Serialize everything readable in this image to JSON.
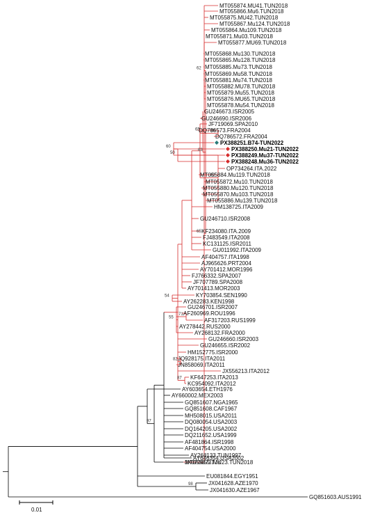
{
  "colors": {
    "black": "#000000",
    "red": "#d62b2b",
    "blue": "#2b7a78",
    "diamond": "#e02020"
  },
  "scale_bar": {
    "label": "0.01"
  },
  "root": {
    "branch_color": "black",
    "children": [
      {
        "label": "GQ851603.AUS1991"
      },
      {
        "children": [
          {
            "children": [
              {
                "label": "JX041628.AZE1970"
              },
              {
                "label": "JX041630.AZE1967"
              }
            ],
            "support": "98"
          },
          {
            "label": "EU081844.EGY1951"
          },
          {
            "children": [
              {
                "children": [
                  {
                    "children": [
                      {
                        "label": "JX070655.TJK"
                      },
                      {
                        "children": [
                          {
                            "label": "AY660002.MEX2003"
                          },
                          {
                            "label": "GQ851607.NGA1965"
                          },
                          {
                            "label": "GQ851608.CAF1967"
                          },
                          {
                            "label": "MH508015.USA2011"
                          },
                          {
                            "label": "DQ080054.USA2003"
                          },
                          {
                            "label": "DQ164205.USA2002"
                          },
                          {
                            "label": "DQ211652.USA1999"
                          },
                          {
                            "label": "AF481864.ISR1998"
                          },
                          {
                            "label": "AF404754.USA2000"
                          },
                          {
                            "label": "AY268133.TUN1997"
                          },
                          {
                            "label": "AY646354.USA2002"
                          },
                          {
                            "branch_color": "red",
                            "children": [
                              {
                                "children": [
                                  {
                                    "children": [
                                      {
                                        "children": [
                                          {
                                            "children": [
                                              {
                                                "children": [
                                                  {
                                                    "children": [
                                                      {
                                                        "children": [
                                                          {
                                                            "label": "MT055873.MU23.TUN2018"
                                                          },
                                                          {
                                                            "label": "MT055874.MU41.TUN2018"
                                                          },
                                                          {
                                                            "label": "MT055866.Mu6.TUN2018"
                                                          },
                                                          {
                                                            "label": "MT055875.MU42.TUN2018"
                                                          },
                                                          {
                                                            "label": "MT055867.Mu124.TUN2018"
                                                          },
                                                          {
                                                            "label": "MT055864.Mu109.TUN2018"
                                                          },
                                                          {
                                                            "label": "MT055871.Mu03.TUN2018"
                                                          }
                                                        ],
                                                        "support": "65"
                                                      },
                                                      {
                                                        "children": [
                                                          {
                                                            "label": "MT055877.MU69.TUN2018"
                                                          },
                                                          {
                                                            "label": "MT055868.Mu130.TUN2018"
                                                          },
                                                          {
                                                            "label": "MT055865.Mu128.TUN2018"
                                                          },
                                                          {
                                                            "label": "MT055885.Mu73.TUN2018"
                                                          },
                                                          {
                                                            "label": "MT055869.Mu58.TUN2018"
                                                          },
                                                          {
                                                            "label": "MT055881.Mu74.TUN2018"
                                                          },
                                                          {
                                                            "label": "MT055882.MU78.TUN2018"
                                                          },
                                                          {
                                                            "label": "MT055879.Mu55.TUN2018"
                                                          },
                                                          {
                                                            "label": "MT055876.MU65.TUN2018"
                                                          }
                                                        ],
                                                        "support": "62"
                                                      },
                                                      {
                                                        "label": "MT055878.Mu54.TUN2018"
                                                      }
                                                    ],
                                                    "support": "63"
                                                  },
                                                  {
                                                    "label": "GU246673.ISR2005"
                                                  },
                                                  {
                                                    "label": "GU246690.ISR2006"
                                                  }
                                                ],
                                                "support": "65"
                                              },
                                              {
                                                "label": "JF719069.SPA2010"
                                              },
                                              {
                                                "children": [
                                                  {
                                                    "label": "DQ786573.FRA2004"
                                                  },
                                                  {
                                                    "label": "DQ786572.FRA2004"
                                                  }
                                                ],
                                                "support": "99"
                                              },
                                              {
                                                "children": [
                                                  {
                                                    "children": [
                                                      {
                                                        "children": [
                                                          {
                                                            "label": "PX388251.B74-TUN2022",
                                                            "bold": true,
                                                            "marker": "blue"
                                                          },
                                                          {
                                                            "label": "PX388250.Mu21-TUN2022",
                                                            "bold": true,
                                                            "marker": "red"
                                                          },
                                                          {
                                                            "label": "PX388249.Mu37-TUN2022",
                                                            "bold": true,
                                                            "marker": "red"
                                                          }
                                                        ],
                                                        "support": "60"
                                                      },
                                                      {
                                                        "label": "PX388248.Mu36-TUN2022",
                                                        "bold": true,
                                                        "marker": "red"
                                                      }
                                                    ],
                                                    "support": "50"
                                                  },
                                                  {
                                                    "label": "OP734264.ITA.2022"
                                                  },
                                                  {
                                                    "label": "MT055884.Mu119.TUN2018"
                                                  },
                                                  {
                                                    "label": "MT055872.Mu10.TUN2018"
                                                  },
                                                  {
                                                    "label": "MT055880.Mu120.TUN2018"
                                                  },
                                                  {
                                                    "label": "MT055870.Mu103.TUN2018"
                                                  },
                                                  {
                                                    "label": "MT055886.Mu139.TUN2018"
                                                  }
                                                ],
                                                "support": "82"
                                              }
                                            ]
                                          },
                                          {
                                            "label": "HM138725.ITA2009"
                                          },
                                          {
                                            "label": "GU246710.ISR2008"
                                          },
                                          {
                                            "label": "KF234080.ITA.2009"
                                          },
                                          {
                                            "label": "FJ483549.ITA2008"
                                          },
                                          {
                                            "label": "KC131125.ISR2011"
                                          },
                                          {
                                            "label": "GU011992.ITA2009"
                                          }
                                        ]
                                      },
                                      {
                                        "label": "AF404757.ITA1998"
                                      },
                                      {
                                        "label": "AJ965626.PRT2004"
                                      },
                                      {
                                        "label": "AY701412.MOR1996"
                                      },
                                      {
                                        "label": "FJ766332.SPA2007"
                                      },
                                      {
                                        "label": "JF707789.SPA2008"
                                      },
                                      {
                                        "label": "AY701413.MOR2003"
                                      }
                                    ]
                                  },
                                  {
                                    "children": [
                                      {
                                        "label": "KY703854.SEN1990"
                                      },
                                      {
                                        "label": "AY262283.KEN1998"
                                      }
                                    ],
                                    "support": "54"
                                  },
                                  {
                                    "children": [
                                      {
                                        "label": "GU246701.ISR2007"
                                      },
                                      {
                                        "children": [
                                          {
                                            "label": "AF260969.ROU1996"
                                          },
                                          {
                                            "label": "AF317203.RUS1999"
                                          }
                                        ],
                                        "support": "71"
                                      },
                                      {
                                        "label": "AY278442.RUS2000"
                                      },
                                      {
                                        "label": "AY268132.FRA2000"
                                      }
                                    ],
                                    "support": "55"
                                  },
                                  {
                                    "label": "GU246660.ISR2003"
                                  },
                                  {
                                    "label": "GU246655.ISR2002"
                                  },
                                  {
                                    "label": "HM152775.ISR2000"
                                  },
                                  {
                                    "children": [
                                      {
                                        "label": "JQ928175.ITA2011"
                                      },
                                      {
                                        "label": "JN858069.ITA2011"
                                      }
                                    ],
                                    "support": "82"
                                  },
                                  {
                                    "label": "JX556213.ITA2012"
                                  },
                                  {
                                    "children": [
                                      {
                                        "label": "KF647253.ITA2013"
                                      },
                                      {
                                        "label": "KC954092.ITA2012"
                                      }
                                    ],
                                    "support": "87"
                                  }
                                ]
                              }
                            ]
                          }
                        ]
                      }
                    ],
                    "support": "97"
                  },
                  {
                    "label": "AY603654.ETH1976"
                  }
                ]
              }
            ]
          }
        ]
      }
    ]
  }
}
